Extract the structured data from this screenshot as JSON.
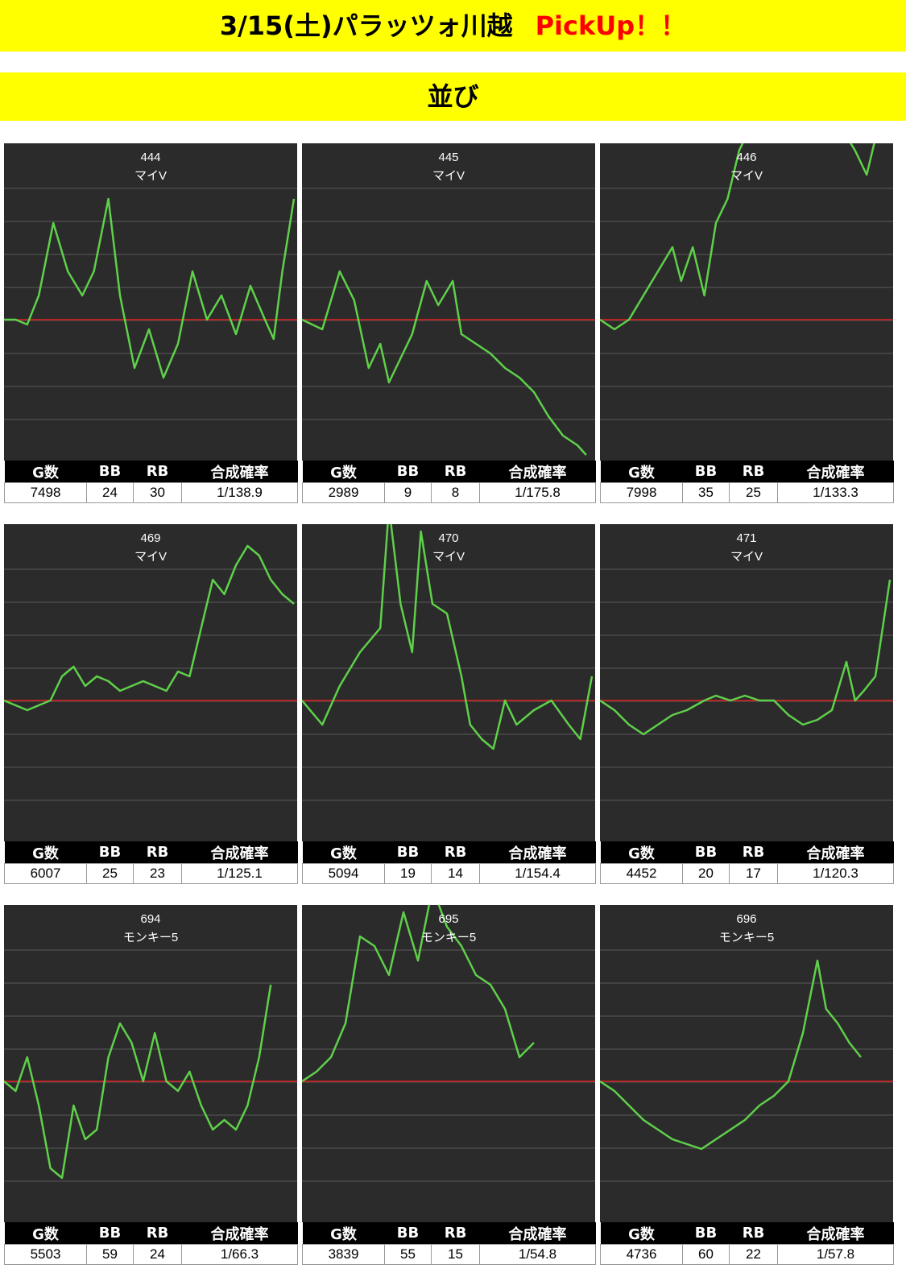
{
  "header": {
    "title": "3/15(土)パラッツォ川越",
    "pickup": "PickUp！！",
    "subtitle": "並び"
  },
  "table_headers": [
    "G数",
    "BB",
    "RB",
    "合成確率"
  ],
  "colors": {
    "background": "#2b2b2b",
    "line": "#5fd04a",
    "baseline": "#e02020",
    "banner": "#ffff00"
  },
  "chart_data": [
    {
      "type": "line",
      "machine_no": "444",
      "model": "マイV",
      "stats": {
        "games": "7498",
        "bb": "24",
        "rb": "30",
        "rate": "1/138.9"
      },
      "x": [
        0,
        0.04,
        0.08,
        0.12,
        0.17,
        0.22,
        0.27,
        0.31,
        0.36,
        0.4,
        0.45,
        0.5,
        0.55,
        0.6,
        0.65,
        0.7,
        0.75,
        0.8,
        0.85,
        0.9,
        0.93,
        0.96,
        1.0
      ],
      "y": [
        0,
        0,
        -0.01,
        0.05,
        0.2,
        0.1,
        0.05,
        0.1,
        0.25,
        0.05,
        -0.1,
        -0.02,
        -0.12,
        -0.05,
        0.1,
        0.0,
        0.05,
        -0.03,
        0.07,
        0.0,
        -0.04,
        0.1,
        0.25
      ]
    },
    {
      "type": "line",
      "machine_no": "445",
      "model": "マイV",
      "stats": {
        "games": "2989",
        "bb": "9",
        "rb": "8",
        "rate": "1/175.8"
      },
      "x": [
        0,
        0.07,
        0.13,
        0.18,
        0.23,
        0.27,
        0.3,
        0.34,
        0.38,
        0.43,
        0.47,
        0.52,
        0.55,
        0.6,
        0.65,
        0.7,
        0.75,
        0.8,
        0.85,
        0.9,
        0.95,
        0.98
      ],
      "y": [
        0,
        -0.02,
        0.1,
        0.04,
        -0.1,
        -0.05,
        -0.13,
        -0.08,
        -0.03,
        0.08,
        0.03,
        0.08,
        -0.03,
        -0.05,
        -0.07,
        -0.1,
        -0.12,
        -0.15,
        -0.2,
        -0.24,
        -0.26,
        -0.28
      ]
    },
    {
      "type": "line",
      "machine_no": "446",
      "model": "マイV",
      "stats": {
        "games": "7998",
        "bb": "35",
        "rb": "25",
        "rate": "1/133.3"
      },
      "x": [
        0,
        0.05,
        0.1,
        0.15,
        0.2,
        0.25,
        0.28,
        0.32,
        0.36,
        0.4,
        0.44,
        0.48,
        0.52,
        0.56,
        0.6,
        0.65,
        0.7,
        0.74,
        0.78,
        0.83,
        0.88,
        0.92,
        0.96,
        1.0
      ],
      "y": [
        0,
        -0.02,
        0,
        0.05,
        0.1,
        0.15,
        0.08,
        0.15,
        0.05,
        0.2,
        0.25,
        0.35,
        0.4,
        0.38,
        0.42,
        0.45,
        0.55,
        0.5,
        0.45,
        0.4,
        0.35,
        0.3,
        0.4,
        0.45
      ]
    },
    {
      "type": "line",
      "machine_no": "469",
      "model": "マイV",
      "stats": {
        "games": "6007",
        "bb": "25",
        "rb": "23",
        "rate": "1/125.1"
      },
      "x": [
        0,
        0.04,
        0.08,
        0.12,
        0.16,
        0.2,
        0.24,
        0.28,
        0.32,
        0.36,
        0.4,
        0.44,
        0.48,
        0.52,
        0.56,
        0.6,
        0.64,
        0.68,
        0.72,
        0.76,
        0.8,
        0.84,
        0.88,
        0.92,
        0.96,
        1.0
      ],
      "y": [
        0,
        -0.01,
        -0.02,
        -0.01,
        0.0,
        0.05,
        0.07,
        0.03,
        0.05,
        0.04,
        0.02,
        0.03,
        0.04,
        0.03,
        0.02,
        0.06,
        0.05,
        0.15,
        0.25,
        0.22,
        0.28,
        0.32,
        0.3,
        0.25,
        0.22,
        0.2
      ]
    },
    {
      "type": "line",
      "machine_no": "470",
      "model": "マイV",
      "stats": {
        "games": "5094",
        "bb": "19",
        "rb": "14",
        "rate": "1/154.4"
      },
      "x": [
        0,
        0.07,
        0.13,
        0.2,
        0.27,
        0.3,
        0.34,
        0.38,
        0.41,
        0.45,
        0.5,
        0.55,
        0.58,
        0.62,
        0.66,
        0.7,
        0.74,
        0.8,
        0.86,
        0.92,
        0.96,
        1.0
      ],
      "y": [
        0,
        -0.05,
        0.03,
        0.1,
        0.15,
        0.4,
        0.2,
        0.1,
        0.35,
        0.2,
        0.18,
        0.05,
        -0.05,
        -0.08,
        -0.1,
        0.0,
        -0.05,
        -0.02,
        0.0,
        -0.05,
        -0.08,
        0.05
      ]
    },
    {
      "type": "line",
      "machine_no": "471",
      "model": "マイV",
      "stats": {
        "games": "4452",
        "bb": "20",
        "rb": "17",
        "rate": "1/120.3"
      },
      "x": [
        0,
        0.05,
        0.1,
        0.15,
        0.2,
        0.25,
        0.3,
        0.33,
        0.36,
        0.4,
        0.45,
        0.5,
        0.55,
        0.6,
        0.65,
        0.7,
        0.75,
        0.8,
        0.85,
        0.88,
        0.91,
        0.95,
        1.0
      ],
      "y": [
        0,
        -0.02,
        -0.05,
        -0.07,
        -0.05,
        -0.03,
        -0.02,
        -0.01,
        0.0,
        0.01,
        0.0,
        0.01,
        0.0,
        0.0,
        -0.03,
        -0.05,
        -0.04,
        -0.02,
        0.08,
        0.0,
        0.02,
        0.05,
        0.25
      ]
    },
    {
      "type": "line",
      "machine_no": "694",
      "model": "モンキー5",
      "stats": {
        "games": "5503",
        "bb": "59",
        "rb": "24",
        "rate": "1/66.3"
      },
      "x": [
        0,
        0.04,
        0.08,
        0.12,
        0.16,
        0.2,
        0.24,
        0.28,
        0.32,
        0.36,
        0.4,
        0.44,
        0.48,
        0.52,
        0.56,
        0.6,
        0.64,
        0.68,
        0.72,
        0.76,
        0.8,
        0.84,
        0.88,
        0.92
      ],
      "y": [
        0,
        -0.02,
        0.05,
        -0.05,
        -0.18,
        -0.2,
        -0.05,
        -0.12,
        -0.1,
        0.05,
        0.12,
        0.08,
        0.0,
        0.1,
        0.0,
        -0.02,
        0.02,
        -0.05,
        -0.1,
        -0.08,
        -0.1,
        -0.05,
        0.05,
        0.2
      ]
    },
    {
      "type": "line",
      "machine_no": "695",
      "model": "モンキー5",
      "stats": {
        "games": "3839",
        "bb": "55",
        "rb": "15",
        "rate": "1/54.8"
      },
      "x": [
        0,
        0.05,
        0.1,
        0.15,
        0.2,
        0.25,
        0.3,
        0.35,
        0.4,
        0.45,
        0.5,
        0.55,
        0.6,
        0.65,
        0.7,
        0.75,
        0.8
      ],
      "y": [
        0,
        0.02,
        0.05,
        0.12,
        0.3,
        0.28,
        0.22,
        0.35,
        0.25,
        0.4,
        0.32,
        0.28,
        0.22,
        0.2,
        0.15,
        0.05,
        0.08
      ]
    },
    {
      "type": "line",
      "machine_no": "696",
      "model": "モンキー5",
      "stats": {
        "games": "4736",
        "bb": "60",
        "rb": "22",
        "rate": "1/57.8"
      },
      "x": [
        0,
        0.05,
        0.1,
        0.15,
        0.2,
        0.25,
        0.3,
        0.35,
        0.4,
        0.45,
        0.5,
        0.55,
        0.6,
        0.65,
        0.7,
        0.75,
        0.78,
        0.82,
        0.86,
        0.9
      ],
      "y": [
        0,
        -0.02,
        -0.05,
        -0.08,
        -0.1,
        -0.12,
        -0.13,
        -0.14,
        -0.12,
        -0.1,
        -0.08,
        -0.05,
        -0.03,
        0.0,
        0.1,
        0.25,
        0.15,
        0.12,
        0.08,
        0.05
      ]
    }
  ]
}
